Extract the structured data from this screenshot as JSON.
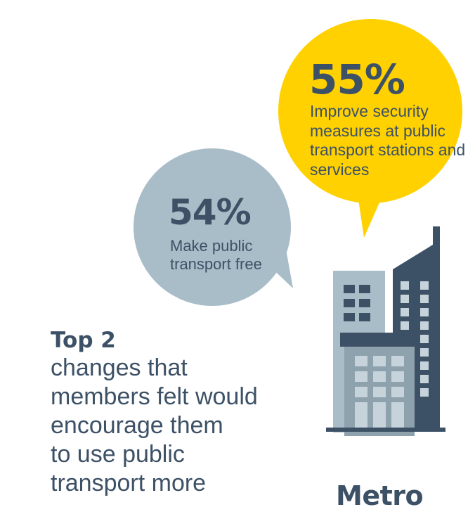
{
  "colors": {
    "dark": "#3d5166",
    "yellow": "#ffd100",
    "light_blue": "#a9bdc8",
    "mid_blue": "#8ea2ae",
    "pale_window": "#c6d3db"
  },
  "stats": {
    "top": {
      "percent": "55%",
      "description": "Improve security measures at public transport stations and services",
      "color": "#ffd100"
    },
    "second": {
      "percent": "54%",
      "description": "Make public transport free",
      "color": "#a9bdc8"
    }
  },
  "headline": {
    "strong": "Top 2",
    "body": "changes that\nmembers felt would\nencourage them\nto use public\ntransport more"
  },
  "city": {
    "name": "Metro",
    "icon": "city-buildings-icon"
  }
}
